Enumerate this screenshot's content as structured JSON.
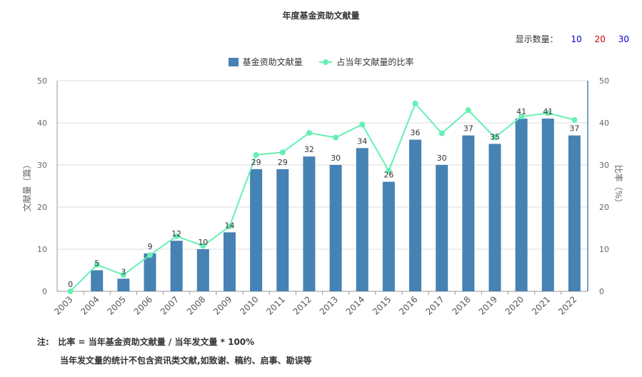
{
  "title": "年度基金资助文献量",
  "count_selector": {
    "label": "显示数量：",
    "options": [
      {
        "text": "10",
        "color": "#0000cc"
      },
      {
        "text": "20",
        "color": "#cc0000"
      },
      {
        "text": "30",
        "color": "#0000cc"
      }
    ]
  },
  "colors": {
    "bar": "#4682b4",
    "line": "#66f0b4",
    "axis_right": "#4682b4"
  },
  "notes": {
    "line1": "注:   比率 = 当年基金资助文献量 / 当年发文量 * 100%",
    "line2": "当年发文量的统计不包含资讯类文献,如致谢、稿约、启事、勘误等"
  },
  "chart_data": {
    "type": "bar+line",
    "categories": [
      "2003",
      "2004",
      "2005",
      "2006",
      "2007",
      "2008",
      "2009",
      "2010",
      "2011",
      "2012",
      "2013",
      "2014",
      "2015",
      "2016",
      "2017",
      "2018",
      "2019",
      "2020",
      "2021",
      "2022"
    ],
    "series": [
      {
        "name": "基金资助文献量",
        "type": "bar",
        "axis": "left",
        "values": [
          0,
          5,
          3,
          9,
          12,
          10,
          14,
          29,
          29,
          32,
          30,
          34,
          26,
          36,
          30,
          37,
          35,
          41,
          41,
          37
        ]
      },
      {
        "name": "占当年文献量的比率",
        "type": "line",
        "axis": "right",
        "values": [
          0,
          6.3,
          3.9,
          8.6,
          13.1,
          10.8,
          15.4,
          32.4,
          33.0,
          37.6,
          36.5,
          39.6,
          28.6,
          44.6,
          37.5,
          43.0,
          36.5,
          41.5,
          42.3,
          40.7
        ]
      }
    ],
    "ylabel_left": "文献量（篇）",
    "ylabel_right": "比率（%）",
    "ylim_left": [
      0,
      50
    ],
    "ylim_right": [
      0,
      50
    ],
    "yticks_left": [
      0,
      10,
      20,
      30,
      40,
      50
    ],
    "yticks_right": [
      0,
      10,
      20,
      30,
      40,
      50
    ],
    "grid": true,
    "legend_position": "top-center"
  }
}
